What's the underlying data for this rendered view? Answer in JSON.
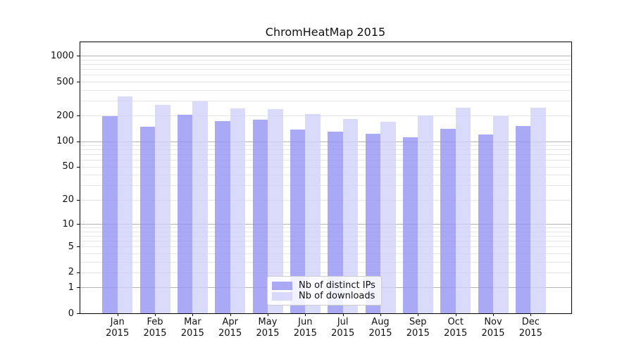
{
  "title": "ChromHeatMap 2015",
  "chart_data": {
    "type": "bar",
    "title": "ChromHeatMap 2015",
    "categories": [
      "Jan",
      "Feb",
      "Mar",
      "Apr",
      "May",
      "Jun",
      "Jul",
      "Aug",
      "Sep",
      "Oct",
      "Nov",
      "Dec"
    ],
    "year_label": "2015",
    "series": [
      {
        "name": "Nb of distinct IPs",
        "color": "#9494f4",
        "values": [
          196,
          148,
          205,
          172,
          180,
          137,
          129,
          123,
          111,
          141,
          120,
          152
        ]
      },
      {
        "name": "Nb of downloads",
        "color": "#d1d1fa",
        "values": [
          335,
          268,
          292,
          242,
          237,
          210,
          182,
          171,
          203,
          249,
          196,
          249
        ]
      }
    ],
    "bar_alpha": 0.8,
    "y_axis": {
      "scale": "log1p",
      "ticks": [
        0,
        1,
        2,
        5,
        10,
        20,
        50,
        100,
        200,
        500,
        1000
      ],
      "major_ticks": [
        1,
        10,
        100,
        1000
      ],
      "top_value": 1415
    },
    "grid": {
      "show": true,
      "orientation": "horizontal",
      "major_color": "#b3b3b3",
      "minor_color": "#e6e6e6"
    },
    "legend": {
      "position": "lower-center",
      "labels": [
        "Nb of distinct IPs",
        "Nb of downloads"
      ]
    },
    "axis_color": "#000000",
    "background_color": "#ffffff"
  }
}
